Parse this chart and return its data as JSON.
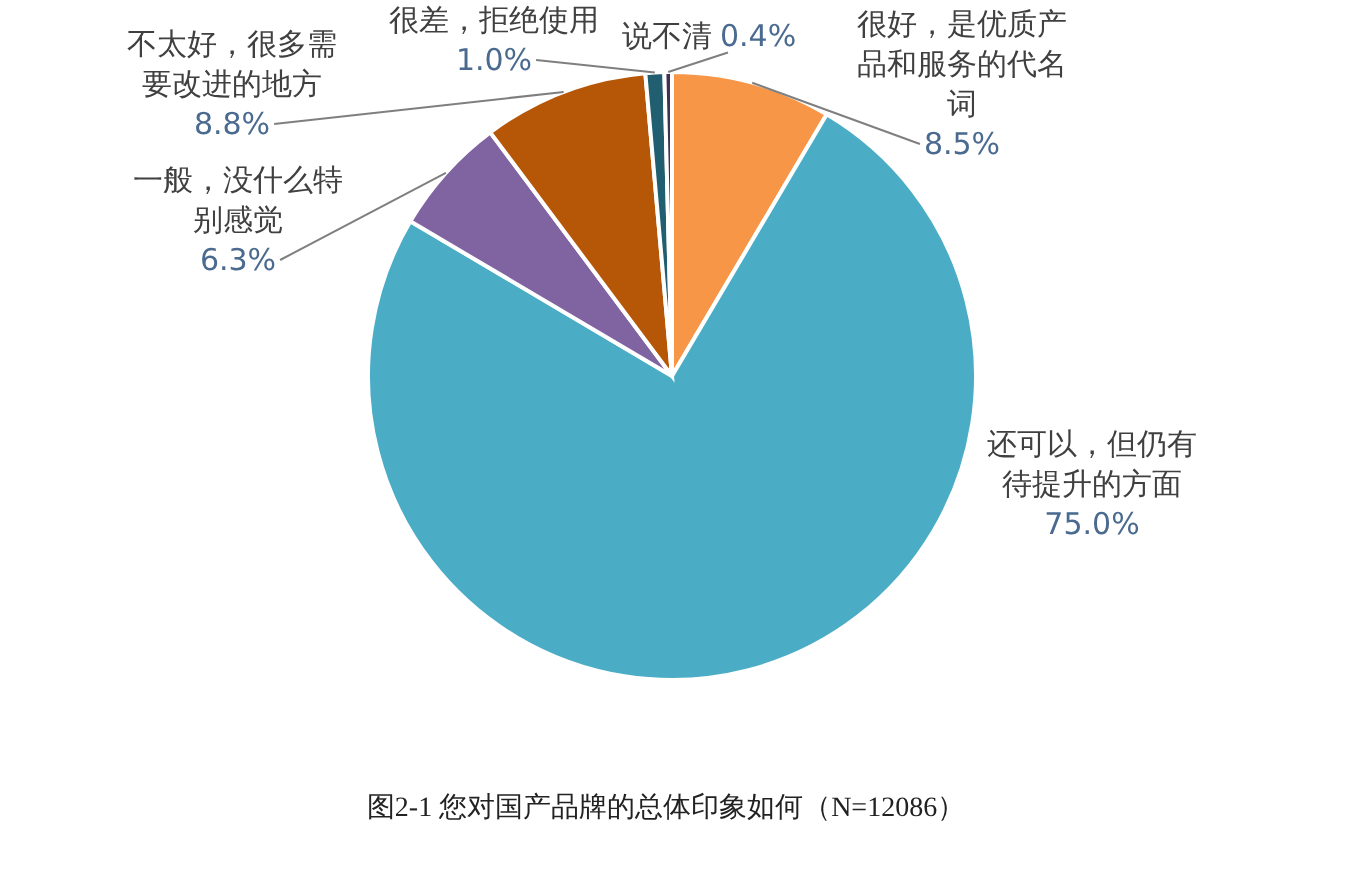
{
  "chart_data": {
    "type": "pie",
    "title": "图2-1 您对国产品牌的总体印象如何（N=12086）",
    "categories": [
      "很好，是优质产品和服务的代名词",
      "还可以，但仍有待提升的方面",
      "一般，没什么特别感觉",
      "不太好，很多需要改进的地方",
      "很差，拒绝使用",
      "说不清"
    ],
    "values": [
      8.5,
      75.0,
      6.3,
      8.8,
      1.0,
      0.4
    ],
    "colors": [
      "#f79646",
      "#4bacc6",
      "#8064a2",
      "#b65708",
      "#215f70",
      "#403152"
    ],
    "value_labels": [
      "8.5%",
      "75.0%",
      "6.3%",
      "8.8%",
      "1.0%",
      "0.4%"
    ]
  }
}
